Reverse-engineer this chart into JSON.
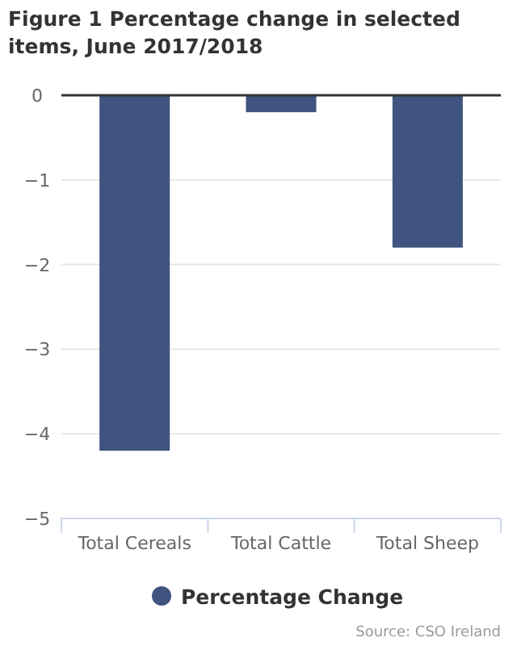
{
  "chart_data": {
    "type": "bar",
    "title": "Figure 1 Percentage change in selected items, June 2017/2018",
    "categories": [
      "Total Cereals",
      "Total Cattle",
      "Total Sheep"
    ],
    "series": [
      {
        "name": "Percentage Change",
        "color": "#3f547f",
        "values": [
          -4.2,
          -0.2,
          -1.8
        ]
      }
    ],
    "ylim": [
      -5,
      0
    ],
    "yticks": [
      {
        "value": -5,
        "label": "−5"
      },
      {
        "value": -4,
        "label": "−4"
      },
      {
        "value": -3,
        "label": "−3"
      },
      {
        "value": -2,
        "label": "−2"
      },
      {
        "value": -1,
        "label": "−1"
      },
      0
    ],
    "grid": "y",
    "legend": "bottom",
    "annotations": [
      "Source: CSO Ireland"
    ]
  }
}
